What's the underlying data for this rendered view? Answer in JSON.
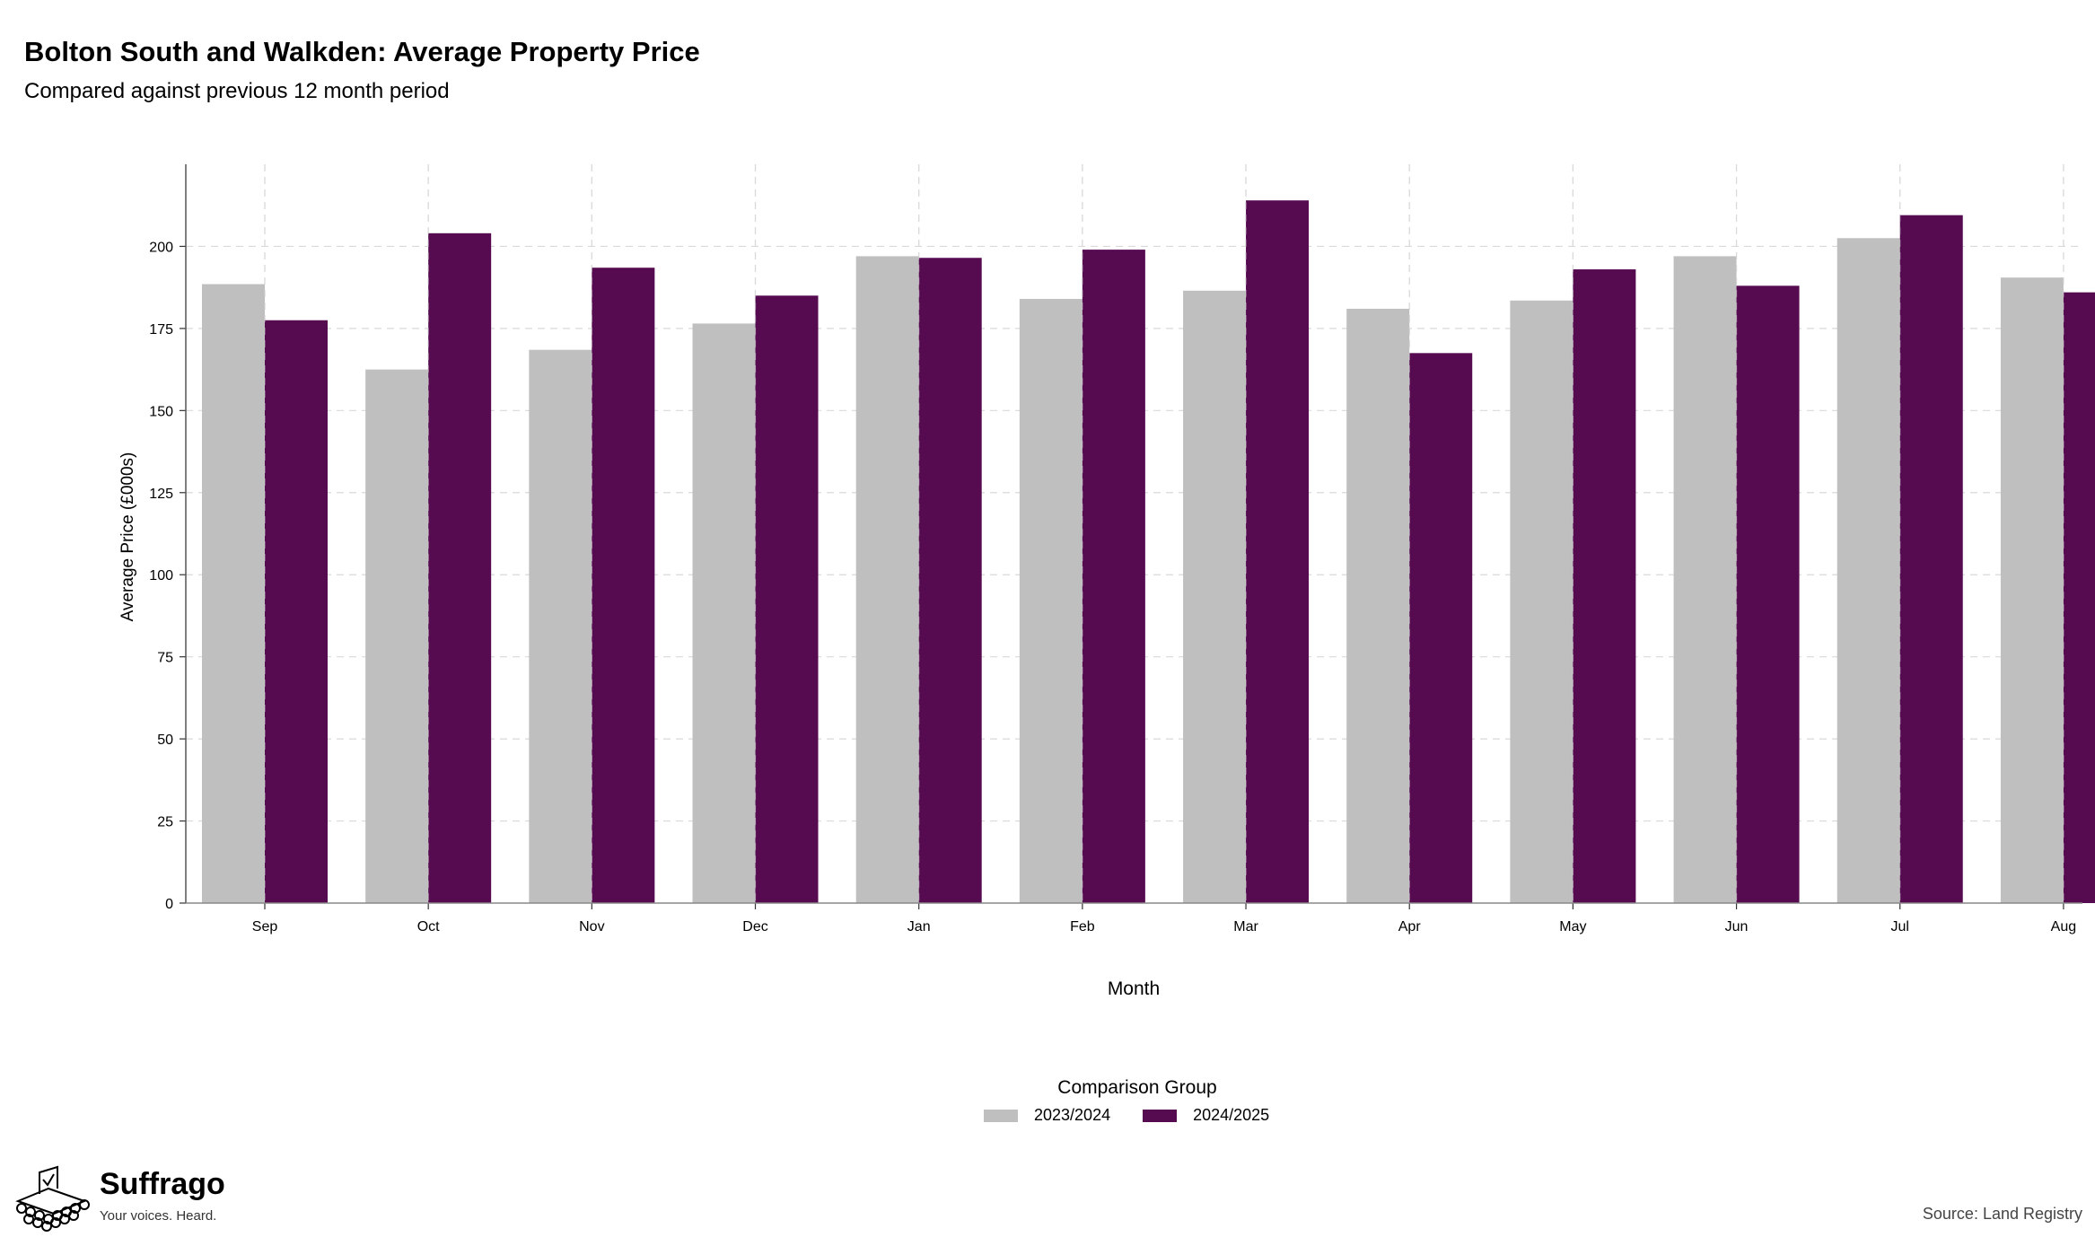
{
  "title": "Bolton South and Walkden: Average Property Price",
  "subtitle": "Compared against previous 12 month period",
  "legend": {
    "title": "Comparison Group",
    "items": [
      {
        "label": "2023/2024",
        "color": "#bfbfbf"
      },
      {
        "label": "2024/2025",
        "color": "#560b51"
      }
    ]
  },
  "brand": {
    "name": "Suffrago",
    "tagline": "Your voices. Heard."
  },
  "source": "Source: Land Registry",
  "chart_data": {
    "type": "bar",
    "xlabel": "Month",
    "ylabel": "Average Price (£000s)",
    "categories": [
      "Sep",
      "Oct",
      "Nov",
      "Dec",
      "Jan",
      "Feb",
      "Mar",
      "Apr",
      "May",
      "Jun",
      "Jul",
      "Aug"
    ],
    "series": [
      {
        "name": "2023/2024",
        "color": "#bfbfbf",
        "values": [
          188.5,
          162.5,
          168.5,
          176.5,
          197.0,
          184.0,
          186.5,
          181.0,
          183.5,
          197.0,
          202.5,
          190.5
        ]
      },
      {
        "name": "2024/2025",
        "color": "#560b51",
        "values": [
          177.5,
          204.0,
          193.5,
          185.0,
          196.5,
          199.0,
          214.0,
          167.5,
          193.0,
          188.0,
          209.5,
          186.0
        ]
      }
    ],
    "yticks": [
      0,
      25,
      50,
      75,
      100,
      125,
      150,
      175,
      200
    ],
    "ylim": [
      0,
      225
    ],
    "grid": true,
    "legend_position": "bottom"
  }
}
